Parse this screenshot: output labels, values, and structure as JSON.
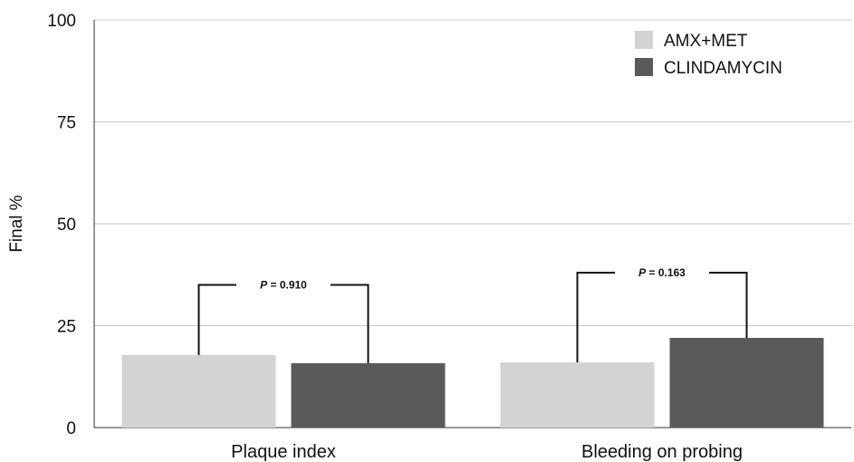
{
  "chart_data": {
    "type": "bar",
    "categories": [
      "Plaque index",
      "Bleeding on probing"
    ],
    "series": [
      {
        "name": "AMX+MET",
        "color": "#d3d3d3",
        "values": [
          17.8,
          16.0
        ]
      },
      {
        "name": "CLINDAMYCIN",
        "color": "#5a5a5a",
        "values": [
          15.8,
          22.0
        ]
      }
    ],
    "title": "",
    "xlabel": "",
    "ylabel": "Final %",
    "ylim": [
      0,
      100
    ],
    "yticks": [
      "0",
      "25",
      "50",
      "75",
      "100"
    ],
    "grid": true,
    "legend_position": "top-right",
    "annotations": [
      {
        "category": "Plaque index",
        "label_prefix": "P",
        "label_value": " = 0.910",
        "bracket_value": 35
      },
      {
        "category": "Bleeding on probing",
        "label_prefix": "P",
        "label_value": " = 0.163",
        "bracket_value": 38
      }
    ]
  }
}
